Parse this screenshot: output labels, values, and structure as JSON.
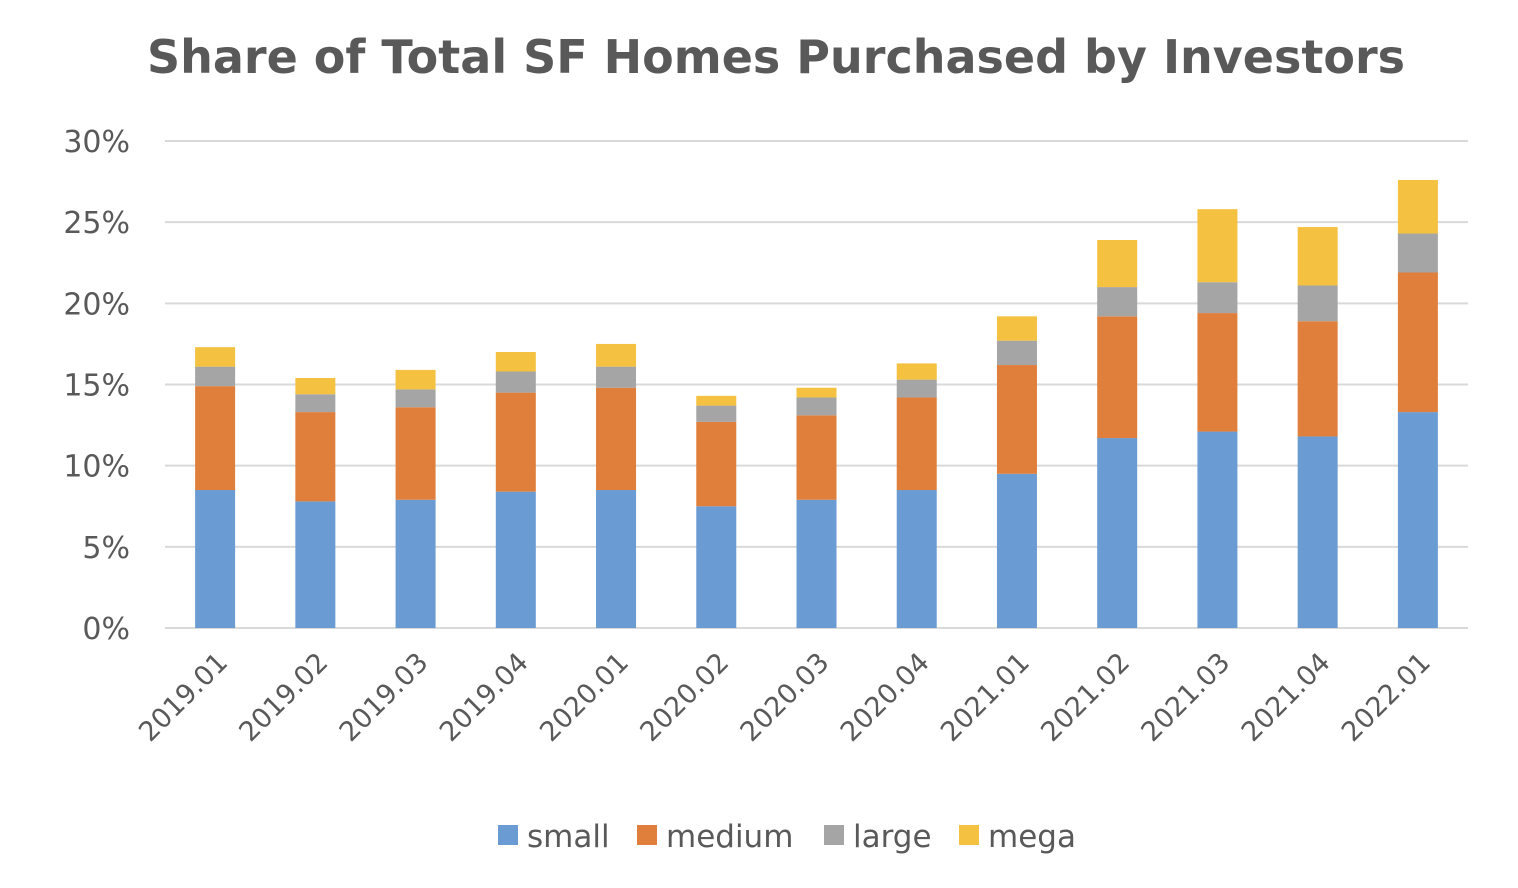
{
  "chart_data": {
    "type": "bar",
    "stacked": true,
    "title": "Share of Total SF Homes Purchased by Investors",
    "xlabel": "",
    "ylabel": "",
    "ylim": [
      0,
      30
    ],
    "yticks": [
      "0%",
      "5%",
      "10%",
      "15%",
      "20%",
      "25%",
      "30%"
    ],
    "grid": true,
    "legend_position": "bottom",
    "categories": [
      "2019.01",
      "2019.02",
      "2019.03",
      "2019.04",
      "2020.01",
      "2020.02",
      "2020.03",
      "2020.04",
      "2021.01",
      "2021.02",
      "2021.03",
      "2021.04",
      "2022.01"
    ],
    "series": [
      {
        "name": "small",
        "color": "#6a9bd3",
        "values": [
          8.5,
          7.8,
          7.9,
          8.4,
          8.5,
          7.5,
          7.9,
          8.5,
          9.5,
          11.7,
          12.1,
          11.8,
          13.3
        ]
      },
      {
        "name": "medium",
        "color": "#e07f3b",
        "values": [
          6.4,
          5.5,
          5.7,
          6.1,
          6.3,
          5.2,
          5.2,
          5.7,
          6.7,
          7.5,
          7.3,
          7.1,
          8.6
        ]
      },
      {
        "name": "large",
        "color": "#a5a5a5",
        "values": [
          1.2,
          1.1,
          1.1,
          1.3,
          1.3,
          1.0,
          1.1,
          1.1,
          1.5,
          1.8,
          1.9,
          2.2,
          2.4
        ]
      },
      {
        "name": "mega",
        "color": "#f4c141",
        "values": [
          1.2,
          1.0,
          1.2,
          1.2,
          1.4,
          0.6,
          0.6,
          1.0,
          1.5,
          2.9,
          4.5,
          3.6,
          3.3
        ]
      }
    ]
  }
}
